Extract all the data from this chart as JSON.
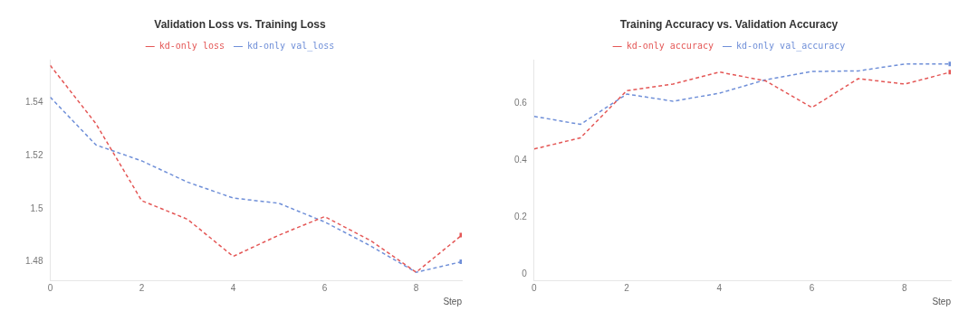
{
  "chart_data": [
    {
      "type": "line",
      "title": "Validation Loss vs. Training Loss",
      "xlabel": "Step",
      "x": [
        0,
        1,
        2,
        3,
        4,
        5,
        6,
        7,
        8,
        9
      ],
      "series": [
        {
          "name": "kd-only loss",
          "color": "#e45756",
          "values": [
            1.554,
            1.532,
            1.503,
            1.496,
            1.482,
            1.49,
            1.497,
            1.488,
            1.476,
            1.49
          ]
        },
        {
          "name": "kd-only val_loss",
          "color": "#6f8fd8",
          "values": [
            1.542,
            1.524,
            1.518,
            1.51,
            1.504,
            1.502,
            1.495,
            1.486,
            1.476,
            1.48
          ]
        }
      ],
      "xlim": [
        0,
        9
      ],
      "xticks": [
        0,
        2,
        4,
        6,
        8
      ],
      "ylim": [
        1.473,
        1.556
      ],
      "yticks": [
        1.48,
        1.5,
        1.52,
        1.54
      ],
      "grid": false,
      "legend": "top",
      "line_style": "dashed"
    },
    {
      "type": "line",
      "title": "Training Accuracy vs. Validation Accuracy",
      "xlabel": "Step",
      "x": [
        0,
        1,
        2,
        3,
        4,
        5,
        6,
        7,
        8,
        9
      ],
      "series": [
        {
          "name": "kd-only accuracy",
          "color": "#e45756",
          "values": [
            0.439,
            0.478,
            0.643,
            0.666,
            0.708,
            0.677,
            0.584,
            0.685,
            0.666,
            0.708
          ]
        },
        {
          "name": "kd-only val_accuracy",
          "color": "#6f8fd8",
          "values": [
            0.553,
            0.525,
            0.631,
            0.606,
            0.634,
            0.681,
            0.71,
            0.712,
            0.736,
            0.736
          ]
        }
      ],
      "xlim": [
        0,
        9
      ],
      "xticks": [
        0,
        2,
        4,
        6,
        8
      ],
      "ylim": [
        -0.02,
        0.75
      ],
      "yticks": [
        0,
        0.2,
        0.4,
        0.6
      ],
      "grid": false,
      "legend": "top",
      "line_style": "dashed"
    }
  ]
}
